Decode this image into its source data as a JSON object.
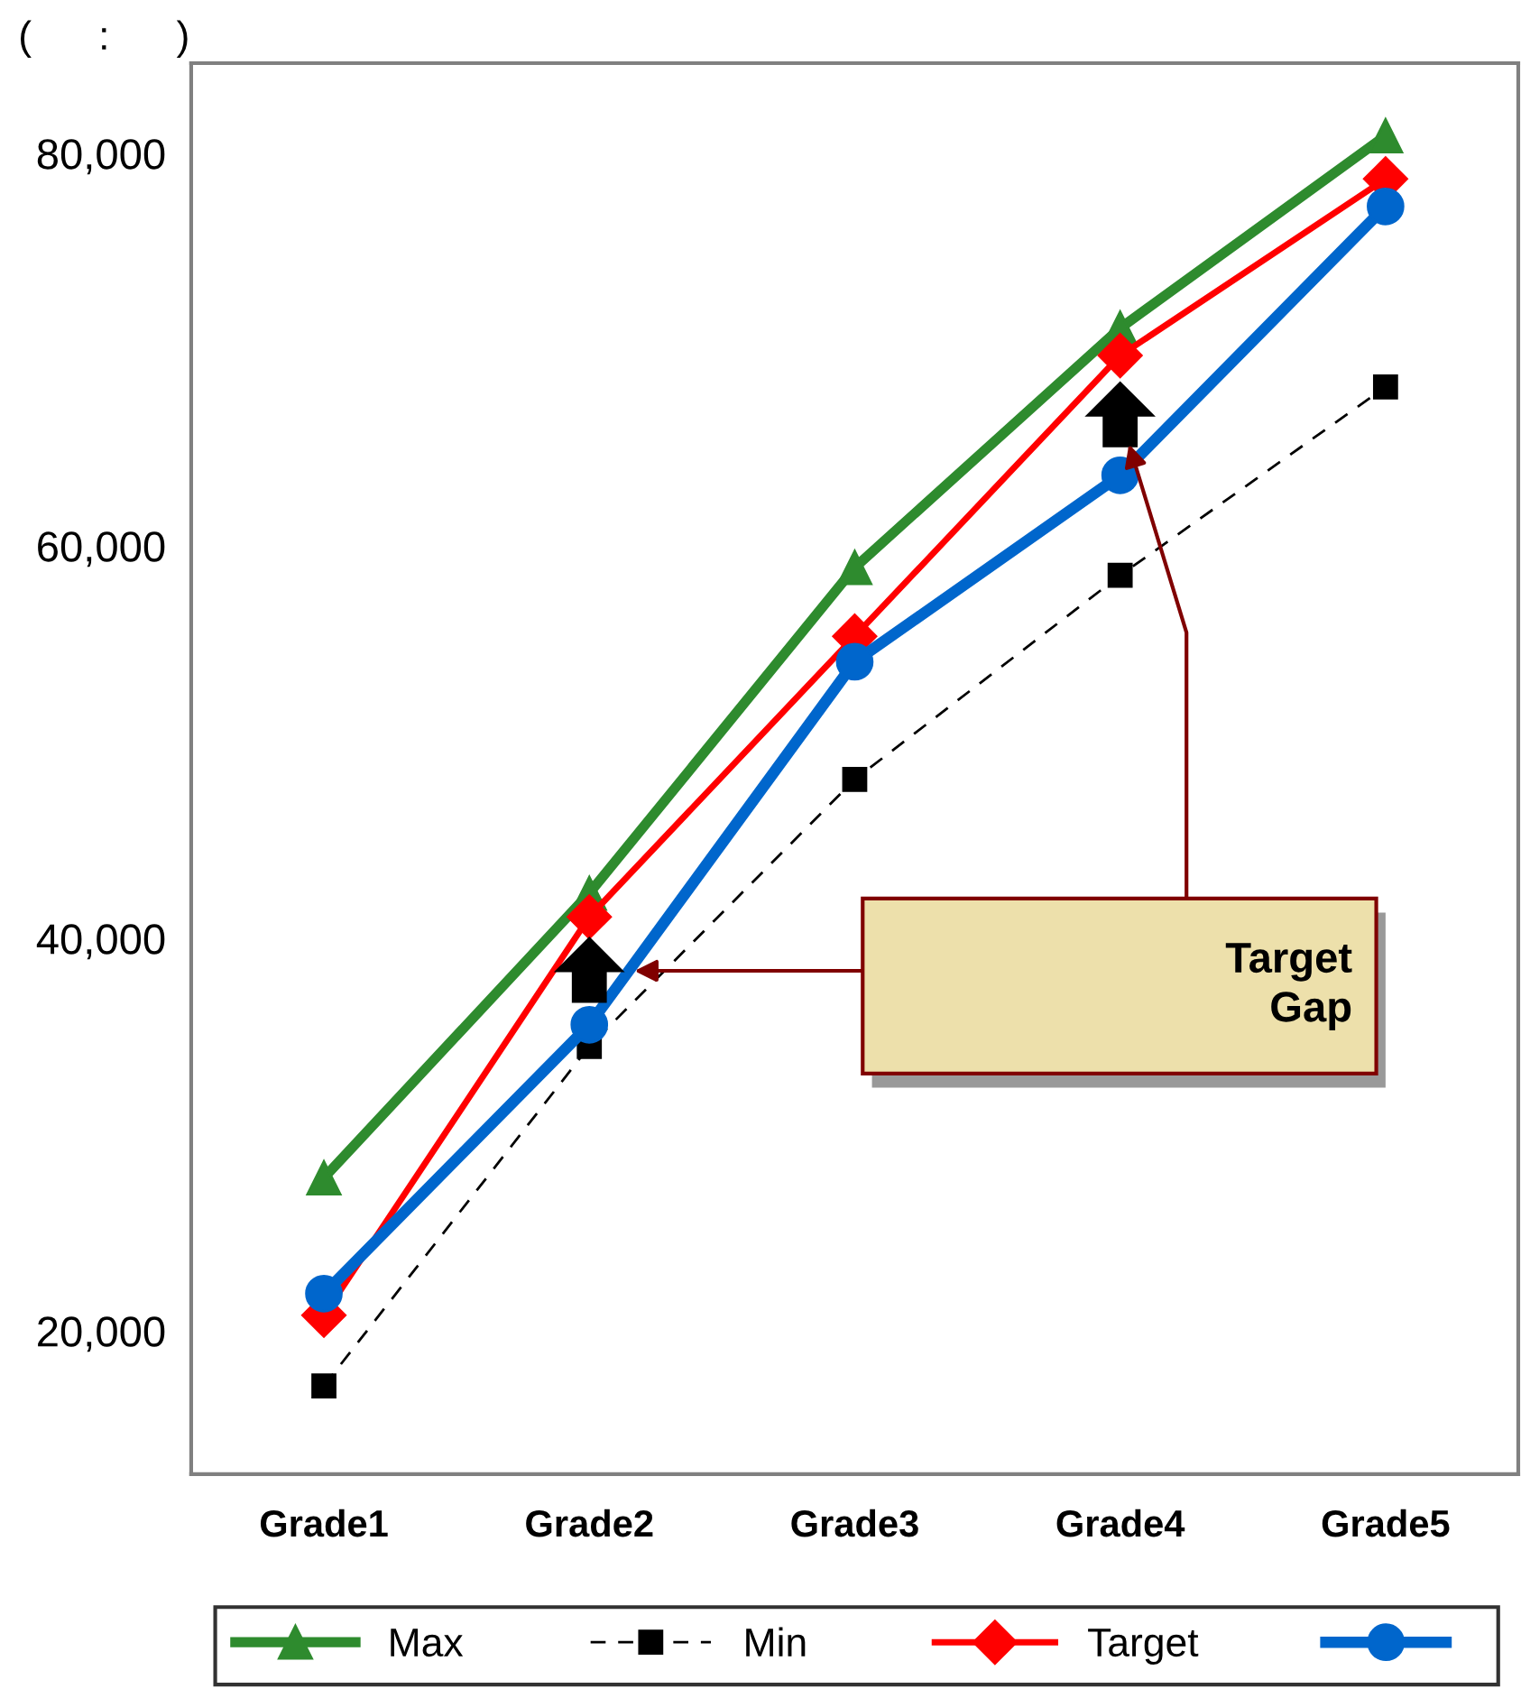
{
  "chart_data": {
    "type": "line",
    "categories": [
      "Grade1",
      "Grade2",
      "Grade3",
      "Grade4",
      "Grade5"
    ],
    "series": [
      {
        "name": "Max",
        "color": "#2e8b2e",
        "marker": "triangle",
        "line_style": "solid",
        "values": [
          27800,
          42300,
          58900,
          71100,
          80900
        ]
      },
      {
        "name": "Min",
        "color": "#000000",
        "marker": "square",
        "line_style": "dashed",
        "values": [
          17200,
          34500,
          48100,
          58500,
          68100
        ]
      },
      {
        "name": "Target",
        "color": "#ff0000",
        "marker": "diamond",
        "line_style": "solid",
        "values": [
          20800,
          41100,
          55400,
          69700,
          78700
        ]
      },
      {
        "color": "#0066cc",
        "marker": "circle",
        "line_style": "solid",
        "values": [
          21900,
          35600,
          54100,
          63600,
          77300
        ]
      }
    ],
    "ylim": [
      12700,
      84600
    ],
    "yticks": [
      {
        "value": 20000,
        "label": "20,000"
      },
      {
        "value": 40000,
        "label": "40,000"
      },
      {
        "value": 60000,
        "label": "60,000"
      },
      {
        "value": 80000,
        "label": "80,000"
      }
    ],
    "grid": false,
    "legend": "bottom",
    "annotations": [
      "(      :      )",
      "Target\nGap"
    ]
  }
}
